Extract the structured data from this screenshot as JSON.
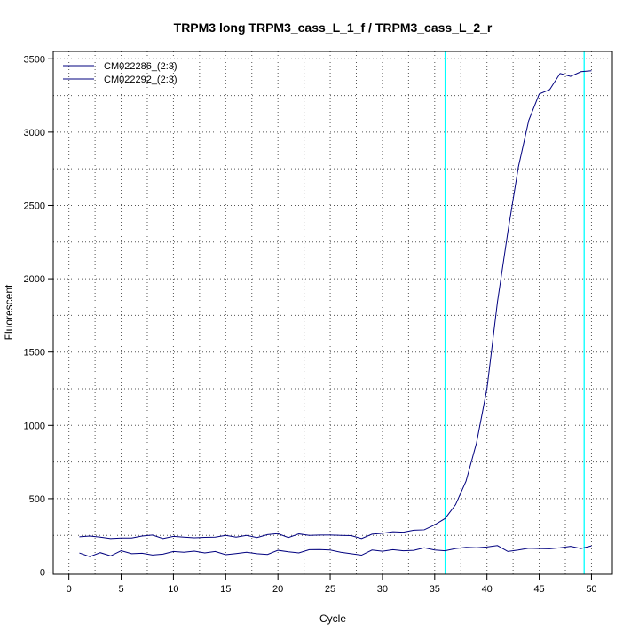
{
  "chart_data": {
    "type": "line",
    "title": "TRPM3 long TRPM3_cass_L_1_f / TRPM3_cass_L_2_r",
    "xlabel": "Cycle",
    "ylabel": "Fluorescent",
    "xlim": [
      -1.5,
      52
    ],
    "ylim": [
      -15,
      3550
    ],
    "x_ticks": [
      0,
      5,
      10,
      15,
      20,
      25,
      30,
      35,
      40,
      45,
      50
    ],
    "y_ticks": [
      0,
      500,
      1000,
      1500,
      2000,
      2500,
      3000,
      3500
    ],
    "grid": "dotted",
    "legend_position": "top-left",
    "x": [
      1,
      2,
      3,
      4,
      5,
      6,
      7,
      8,
      9,
      10,
      11,
      12,
      13,
      14,
      15,
      16,
      17,
      18,
      19,
      20,
      21,
      22,
      23,
      24,
      25,
      26,
      27,
      28,
      29,
      30,
      31,
      32,
      33,
      34,
      35,
      36,
      37,
      38,
      39,
      40,
      41,
      42,
      43,
      44,
      45,
      46,
      47,
      48,
      49,
      50
    ],
    "series": [
      {
        "name": "CM022286_(2:3)",
        "color": "#00007f",
        "values": [
          240,
          245,
          238,
          228,
          232,
          232,
          245,
          252,
          228,
          243,
          238,
          233,
          236,
          238,
          250,
          238,
          250,
          235,
          255,
          262,
          235,
          260,
          250,
          252,
          252,
          250,
          248,
          228,
          258,
          264,
          275,
          272,
          285,
          288,
          322,
          365,
          460,
          620,
          880,
          1250,
          1840,
          2320,
          2760,
          3080,
          3260,
          3290,
          3400,
          3380,
          3412,
          3418
        ]
      },
      {
        "name": "CM022292_(2:3)",
        "color": "#00007f",
        "values": [
          130,
          105,
          132,
          110,
          145,
          125,
          128,
          116,
          122,
          140,
          135,
          142,
          130,
          140,
          118,
          126,
          135,
          125,
          120,
          148,
          138,
          130,
          152,
          153,
          150,
          135,
          125,
          115,
          150,
          142,
          152,
          145,
          148,
          165,
          150,
          145,
          160,
          168,
          165,
          170,
          180,
          140,
          150,
          162,
          160,
          158,
          165,
          175,
          160,
          178
        ]
      }
    ],
    "vlines": [
      {
        "x": 36.0,
        "color": "#00ffff"
      },
      {
        "x": 49.3,
        "color": "#00ffff"
      }
    ],
    "hlines": [
      {
        "y": 0,
        "color": "#8b0000"
      }
    ]
  }
}
